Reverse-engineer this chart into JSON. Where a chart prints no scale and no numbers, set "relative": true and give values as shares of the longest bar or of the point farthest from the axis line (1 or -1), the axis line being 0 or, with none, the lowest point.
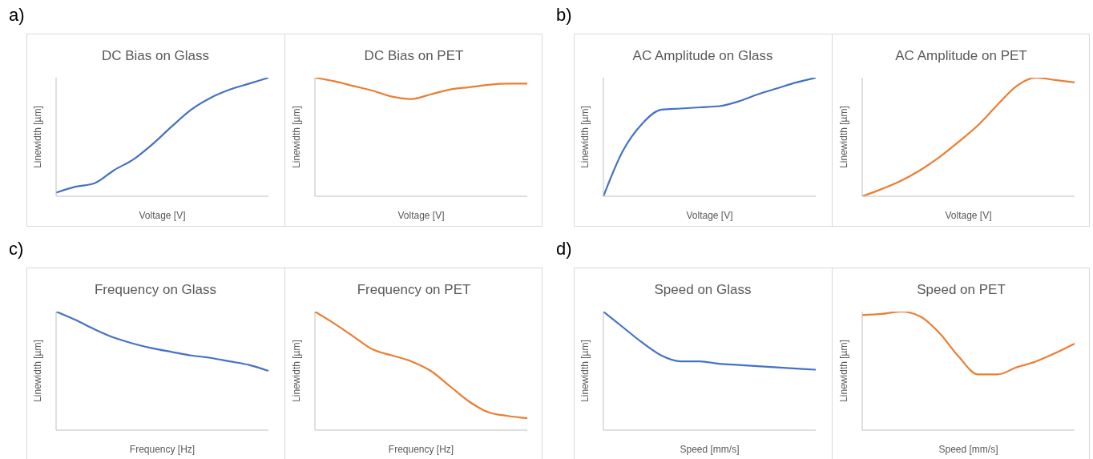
{
  "chart_data": [
    {
      "type": "line",
      "title": "DC Bias on Glass",
      "xlabel": "Voltage [V]",
      "ylabel": "Linewidth [µm]",
      "annotations": [
        "a)"
      ],
      "relative": true,
      "categories": [
        null,
        null,
        null,
        null,
        null,
        null,
        null,
        null,
        null,
        null,
        null,
        null
      ],
      "values": [
        0.03,
        0.08,
        0.11,
        0.22,
        0.31,
        0.44,
        0.59,
        0.73,
        0.83,
        0.9,
        0.95,
        1.0
      ],
      "color": "#4472c4"
    },
    {
      "type": "line",
      "title": "DC Bias on PET",
      "xlabel": "Voltage [V]",
      "ylabel": "Linewidth [µm]",
      "relative": true,
      "categories": [
        null,
        null,
        null,
        null,
        null,
        null,
        null,
        null,
        null,
        null,
        null,
        null
      ],
      "values": [
        1.0,
        0.97,
        0.93,
        0.89,
        0.84,
        0.82,
        0.86,
        0.9,
        0.92,
        0.94,
        0.95,
        0.95
      ],
      "color": "#ed7d31"
    },
    {
      "type": "line",
      "title": "AC Amplitude on Glass",
      "xlabel": "Voltage [V]",
      "ylabel": "Linewidth [µm]",
      "annotations": [
        "b)"
      ],
      "relative": true,
      "categories": [
        null,
        null,
        null,
        null,
        null,
        null,
        null,
        null,
        null,
        null,
        null,
        null
      ],
      "values": [
        0,
        0.38,
        0.61,
        0.73,
        0.74,
        0.75,
        0.76,
        0.8,
        0.86,
        0.91,
        0.96,
        1.0
      ],
      "color": "#4472c4"
    },
    {
      "type": "line",
      "title": "AC Amplitude on PET",
      "xlabel": "Voltage [V]",
      "ylabel": "Linewidth [µm]",
      "relative": true,
      "categories": [
        null,
        null,
        null,
        null,
        null,
        null,
        null,
        null,
        null,
        null,
        null,
        null
      ],
      "values": [
        0,
        0.06,
        0.13,
        0.22,
        0.33,
        0.46,
        0.6,
        0.77,
        0.93,
        1.0,
        0.98,
        0.96
      ],
      "color": "#ed7d31"
    },
    {
      "type": "line",
      "title": "Frequency on Glass",
      "xlabel": "Frequency [Hz]",
      "ylabel": "Linewidth [µm]",
      "annotations": [
        "c)"
      ],
      "relative": true,
      "categories": [
        null,
        null,
        null,
        null,
        null,
        null,
        null,
        null,
        null,
        null,
        null,
        null
      ],
      "values": [
        1.0,
        0.93,
        0.85,
        0.78,
        0.73,
        0.69,
        0.66,
        0.63,
        0.61,
        0.58,
        0.55,
        0.5
      ],
      "color": "#4472c4"
    },
    {
      "type": "line",
      "title": "Frequency on PET",
      "xlabel": "Frequency [Hz]",
      "ylabel": "Linewidth [µm]",
      "relative": true,
      "categories": [
        null,
        null,
        null,
        null,
        null,
        null,
        null,
        null,
        null,
        null,
        null,
        null
      ],
      "values": [
        1.0,
        0.9,
        0.79,
        0.68,
        0.63,
        0.58,
        0.5,
        0.37,
        0.24,
        0.15,
        0.12,
        0.1
      ],
      "color": "#ed7d31"
    },
    {
      "type": "line",
      "title": "Speed on Glass",
      "xlabel": "Speed [mm/s]",
      "ylabel": "Linewidth [µm]",
      "annotations": [
        "d)"
      ],
      "relative": true,
      "categories": [
        null,
        null,
        null,
        null,
        null,
        null,
        null,
        null,
        null,
        null,
        null,
        null
      ],
      "values": [
        1.0,
        0.87,
        0.74,
        0.63,
        0.58,
        0.58,
        0.56,
        0.55,
        0.54,
        0.53,
        0.52,
        0.51
      ],
      "color": "#4472c4"
    },
    {
      "type": "line",
      "title": "Speed on PET",
      "xlabel": "Speed [mm/s]",
      "ylabel": "Linewidth [µm]",
      "relative": true,
      "categories": [
        null,
        null,
        null,
        null,
        null,
        null,
        null,
        null,
        null,
        null,
        null,
        null
      ],
      "values": [
        0.97,
        0.98,
        1.0,
        0.96,
        0.82,
        0.62,
        0.47,
        0.47,
        0.53,
        0.58,
        0.65,
        0.73
      ],
      "color": "#ed7d31"
    }
  ]
}
